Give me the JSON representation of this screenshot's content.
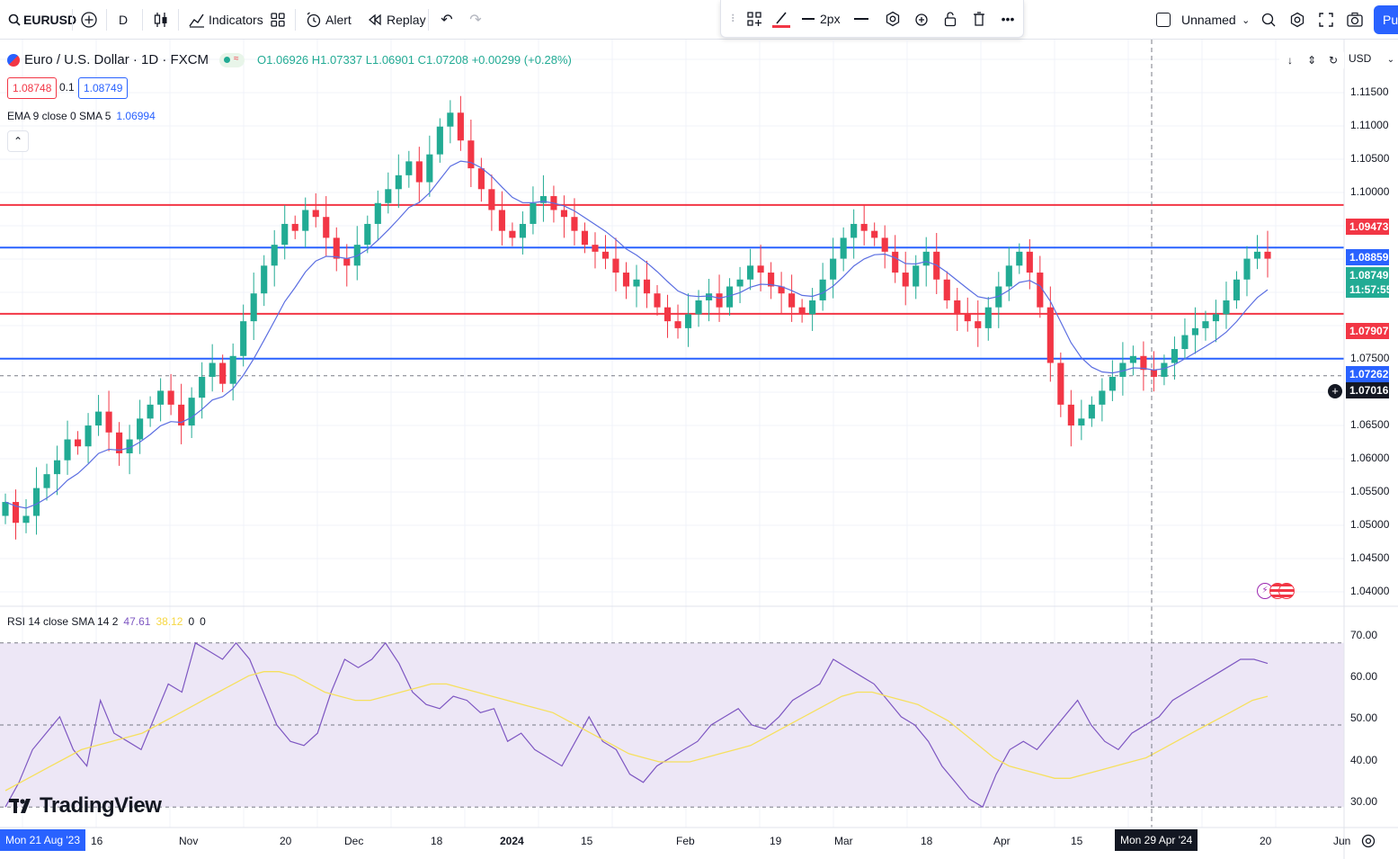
{
  "topbar": {
    "symbol": "EURUSD",
    "interval": "D",
    "indicators_label": "Indicators",
    "alert_label": "Alert",
    "replay_label": "Replay",
    "stroke_width": "2px",
    "layout_name": "Unnamed",
    "publish_label": "Pu"
  },
  "legend": {
    "title": "Euro / U.S. Dollar · 1D · FXCM",
    "ohlc": "O1.06926 H1.07337 L1.06901 C1.07208 +0.00299 (+0.28%)",
    "sell_price": "1.08748",
    "spread": "0.1",
    "buy_price": "1.08749",
    "ema_label": "EMA 9 close 0 SMA 5",
    "ema_value": "1.06994",
    "currency": "USD"
  },
  "rsi_legend": {
    "label": "RSI 14 close SMA 14 2",
    "rsi_value": "47.61",
    "sma_value": "38.12",
    "z1": "0",
    "z2": "0"
  },
  "price_axis": {
    "ticks": [
      "1.11500",
      "1.11000",
      "1.10500",
      "1.10000",
      "1.07500",
      "1.06500",
      "1.06000",
      "1.05500",
      "1.05000",
      "1.04500",
      "1.04000"
    ],
    "labels": [
      {
        "text": "1.09473",
        "color": "#f23645"
      },
      {
        "text": "1.08859",
        "color": "#2962ff"
      },
      {
        "text": "1.08749",
        "color": "#22ab94"
      },
      {
        "text": "11:57:55",
        "color": "#22ab94"
      },
      {
        "text": "1.07907",
        "color": "#f23645"
      },
      {
        "text": "1.07262",
        "color": "#2962ff"
      },
      {
        "text": "1.07016",
        "color": "#131722"
      }
    ]
  },
  "rsi_axis": {
    "ticks": [
      "70.00",
      "60.00",
      "50.00",
      "40.00",
      "30.00"
    ]
  },
  "time_axis": {
    "ticks": [
      "16",
      "Nov",
      "20",
      "Dec",
      "18",
      "2024",
      "15",
      "Feb",
      "19",
      "Mar",
      "18",
      "Apr",
      "15",
      "20",
      "Jun"
    ],
    "left_badge": "Mon 21 Aug '23",
    "cursor_badge": "Mon 29 Apr '24"
  },
  "logo": "TradingView",
  "colors": {
    "up": "#22ab94",
    "down": "#f23645",
    "resistance": "#f23645",
    "support": "#2962ff",
    "ema": "#5b6ee1",
    "rsi": "#7e57c2",
    "rsi_sma": "#f6e05e",
    "rsi_band": "#ede7f6"
  },
  "chart_data": {
    "type": "candlestick",
    "symbol": "EURUSD",
    "timeframe": "1D",
    "horizontal_levels": [
      1.09473,
      1.08859,
      1.07907,
      1.07262,
      1.07016
    ],
    "price_range": [
      1.037,
      1.118
    ],
    "close_series": [
      1.052,
      1.049,
      1.05,
      1.054,
      1.056,
      1.058,
      1.061,
      1.06,
      1.063,
      1.065,
      1.062,
      1.059,
      1.061,
      1.064,
      1.066,
      1.068,
      1.066,
      1.063,
      1.067,
      1.07,
      1.072,
      1.069,
      1.073,
      1.078,
      1.082,
      1.086,
      1.089,
      1.092,
      1.091,
      1.094,
      1.093,
      1.09,
      1.087,
      1.086,
      1.089,
      1.092,
      1.095,
      1.097,
      1.099,
      1.101,
      1.098,
      1.102,
      1.106,
      1.108,
      1.104,
      1.1,
      1.097,
      1.094,
      1.091,
      1.09,
      1.092,
      1.095,
      1.096,
      1.094,
      1.093,
      1.091,
      1.089,
      1.088,
      1.087,
      1.085,
      1.083,
      1.084,
      1.082,
      1.08,
      1.078,
      1.077,
      1.079,
      1.081,
      1.082,
      1.08,
      1.083,
      1.084,
      1.086,
      1.085,
      1.083,
      1.082,
      1.08,
      1.079,
      1.081,
      1.084,
      1.087,
      1.09,
      1.092,
      1.091,
      1.09,
      1.088,
      1.085,
      1.083,
      1.086,
      1.088,
      1.084,
      1.081,
      1.079,
      1.078,
      1.077,
      1.08,
      1.083,
      1.086,
      1.088,
      1.085,
      1.08,
      1.072,
      1.066,
      1.063,
      1.064,
      1.066,
      1.068,
      1.07,
      1.072,
      1.073,
      1.071,
      1.07,
      1.072,
      1.074,
      1.076,
      1.077,
      1.078,
      1.079,
      1.081,
      1.084,
      1.087,
      1.088,
      1.087
    ],
    "rsi_range": [
      25,
      75
    ],
    "rsi_levels": [
      70,
      50,
      30
    ],
    "rsi_series": [
      30,
      36,
      44,
      48,
      52,
      44,
      40,
      56,
      48,
      46,
      44,
      52,
      60,
      58,
      70,
      68,
      66,
      70,
      66,
      58,
      50,
      46,
      45,
      48,
      58,
      66,
      64,
      66,
      70,
      65,
      58,
      55,
      54,
      57,
      56,
      53,
      54,
      46,
      48,
      44,
      42,
      40,
      46,
      52,
      46,
      44,
      38,
      36,
      40,
      42,
      44,
      46,
      50,
      52,
      54,
      50,
      49,
      52,
      56,
      58,
      60,
      66,
      64,
      62,
      60,
      56,
      52,
      50,
      46,
      40,
      36,
      32,
      30,
      38,
      44,
      46,
      44,
      48,
      52,
      56,
      50,
      46,
      44,
      48,
      50,
      52,
      56,
      58,
      60,
      62,
      64,
      66,
      66,
      65
    ],
    "rsi_sma_series": [
      34,
      36,
      38,
      40,
      42,
      44,
      45,
      46,
      47,
      48,
      50,
      52,
      54,
      56,
      58,
      60,
      62,
      63,
      63,
      62,
      60,
      58,
      57,
      56,
      56,
      57,
      58,
      59,
      60,
      60,
      59,
      58,
      57,
      56,
      55,
      54,
      53,
      51,
      49,
      47,
      45,
      43,
      42,
      41,
      41,
      41,
      42,
      43,
      44,
      45,
      47,
      49,
      51,
      53,
      55,
      57,
      58,
      58,
      57,
      56,
      55,
      53,
      51,
      48,
      45,
      42,
      40,
      39,
      38,
      37,
      37,
      38,
      39,
      40,
      41,
      42,
      44,
      46,
      48,
      50,
      52,
      54,
      56,
      57
    ],
    "y_axis_ticks": [
      "1.11500",
      "1.11000",
      "1.10500",
      "1.10000",
      "1.07500",
      "1.06500",
      "1.06000",
      "1.05500",
      "1.05000",
      "1.04500",
      "1.04000"
    ]
  }
}
